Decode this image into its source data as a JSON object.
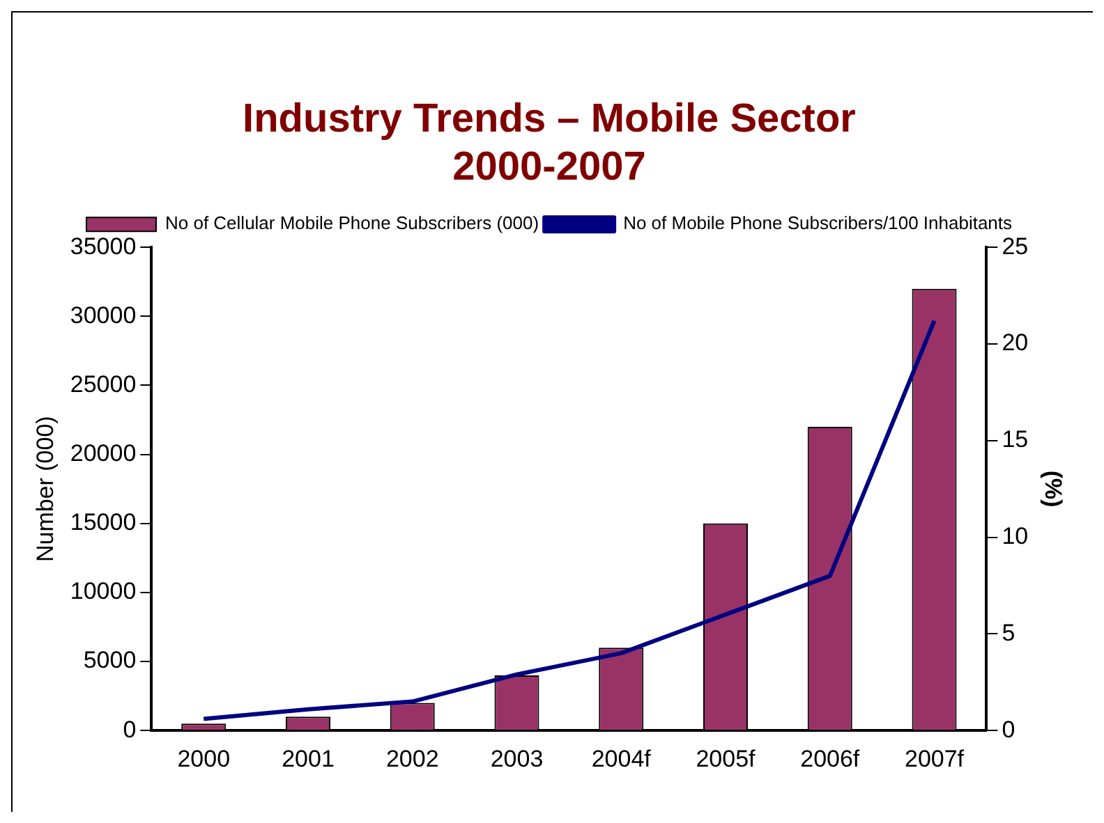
{
  "chart_data": {
    "type": "bar",
    "title": [
      "Industry Trends – Mobile Sector",
      "2000-2007"
    ],
    "categories": [
      "2000",
      "2001",
      "2002",
      "2003",
      "2004f",
      "2005f",
      "2006f",
      "2007f"
    ],
    "series": [
      {
        "name": "No of Cellular Mobile Phone Subscribers (000)",
        "color": "#993366",
        "values": [
          500,
          1000,
          2000,
          4000,
          6000,
          15000,
          22000,
          32000
        ]
      },
      {
        "name": "No of Mobile Phone Subscribers/100 Inhabitants",
        "type": "line",
        "axis": "y2",
        "color": "#000080",
        "values": [
          0.6,
          1.1,
          1.5,
          2.9,
          4.0,
          6.0,
          8.0,
          21.2
        ]
      }
    ],
    "ylabel": "Number (000)",
    "y2label": "(%)",
    "ylim": [
      0,
      35000
    ],
    "yticks": [
      0,
      5000,
      10000,
      15000,
      20000,
      25000,
      30000,
      35000
    ],
    "y2lim": [
      0,
      25
    ],
    "y2ticks": [
      0,
      5,
      10,
      15,
      20,
      25
    ],
    "legend": "top",
    "grid": false,
    "marker": "none"
  }
}
